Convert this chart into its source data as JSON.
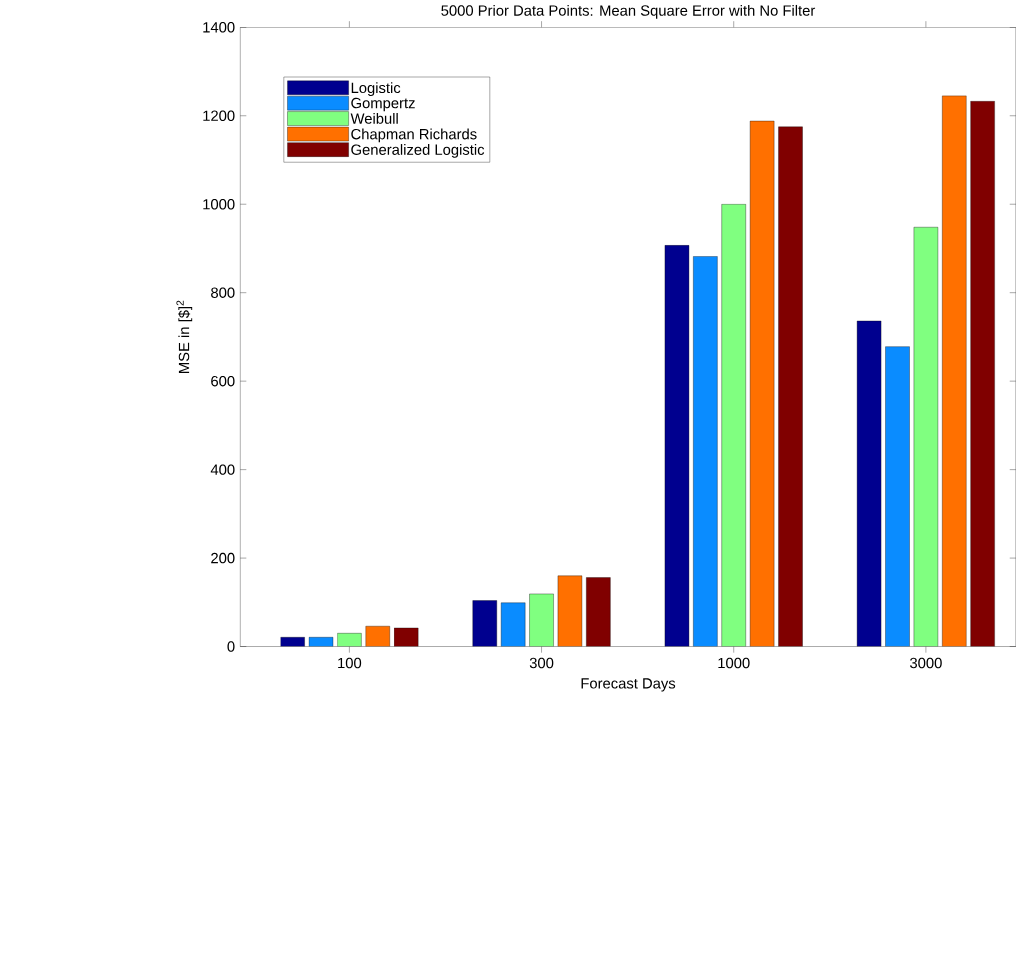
{
  "chart_data": {
    "type": "bar",
    "title": "5000 Prior Data Points: Mean Square Error with No Filter",
    "xlabel": "Forecast Days",
    "ylabel": "MSE in [$]$^{2}$",
    "categories": [
      "100",
      "300",
      "1000",
      "3000"
    ],
    "series": [
      {
        "name": "Logistic",
        "color": "#00008f",
        "values": [
          21,
          104,
          907,
          736
        ]
      },
      {
        "name": "Gompertz",
        "color": "#0a8cff",
        "values": [
          21,
          99,
          882,
          678
        ]
      },
      {
        "name": "Weibull",
        "color": "#80ff80",
        "values": [
          30,
          119,
          1000,
          948
        ]
      },
      {
        "name": "Chapman Richards",
        "color": "#ff7000",
        "values": [
          46,
          160,
          1188,
          1245
        ]
      },
      {
        "name": "Generalized Logistic",
        "color": "#800000",
        "values": [
          42,
          156,
          1175,
          1233
        ]
      }
    ],
    "ylim": [
      0,
      1400
    ],
    "yticks": [
      0,
      200,
      400,
      600,
      800,
      1000,
      1200,
      1400
    ],
    "legend": "top left"
  }
}
